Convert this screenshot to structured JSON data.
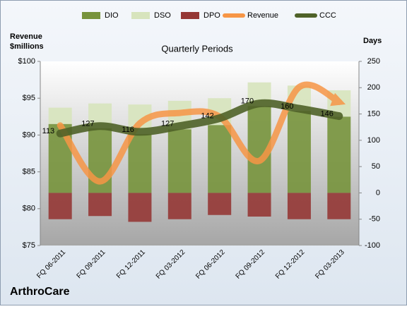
{
  "chart_data": {
    "type": "combo",
    "title": "Quarterly Periods",
    "brand": "ArthroCare",
    "y_label": [
      "Revenue",
      "$millions"
    ],
    "y2_label": "Days",
    "categories": [
      "FQ 06-2011",
      "FQ 09-2011",
      "FQ 12-2011",
      "FQ 03-2012",
      "FQ 06-2012",
      "FQ 09-2012",
      "FQ 12-2012",
      "FQ 03-2013"
    ],
    "ylim": [
      75,
      100
    ],
    "yticks": [
      {
        "value": 75,
        "label": "$75"
      },
      {
        "value": 80,
        "label": "$80"
      },
      {
        "value": 85,
        "label": "$85"
      },
      {
        "value": 90,
        "label": "$90"
      },
      {
        "value": 95,
        "label": "$95"
      },
      {
        "value": 100,
        "label": "$100"
      }
    ],
    "y2lim": [
      -100,
      250
    ],
    "y2ticks": [
      -100,
      -50,
      0,
      50,
      100,
      150,
      200,
      250
    ],
    "series": [
      {
        "name": "DIO",
        "type": "bar",
        "axis": "y2",
        "color": "#77933c",
        "values": [
          131,
          123,
          112,
          121,
          129,
          165,
          156,
          145
        ]
      },
      {
        "name": "DSO",
        "type": "bar",
        "axis": "y2",
        "color": "#d7e4bd",
        "values": [
          31,
          47,
          56,
          54,
          51,
          45,
          48,
          50
        ]
      },
      {
        "name": "DPO",
        "type": "bar",
        "axis": "y2",
        "color": "#953735",
        "values": [
          -50,
          -44,
          -55,
          -50,
          -42,
          -45,
          -50,
          -50
        ]
      },
      {
        "name": "Revenue",
        "type": "line",
        "color": "#f79646",
        "values": [
          91.3,
          83.7,
          91.6,
          93,
          92.5,
          86.5,
          96.5,
          94.5
        ]
      },
      {
        "name": "CCC",
        "type": "line",
        "axis": "y2",
        "color": "#4f6228",
        "values": [
          113,
          127,
          116,
          127,
          142,
          170,
          160,
          146
        ]
      }
    ]
  }
}
